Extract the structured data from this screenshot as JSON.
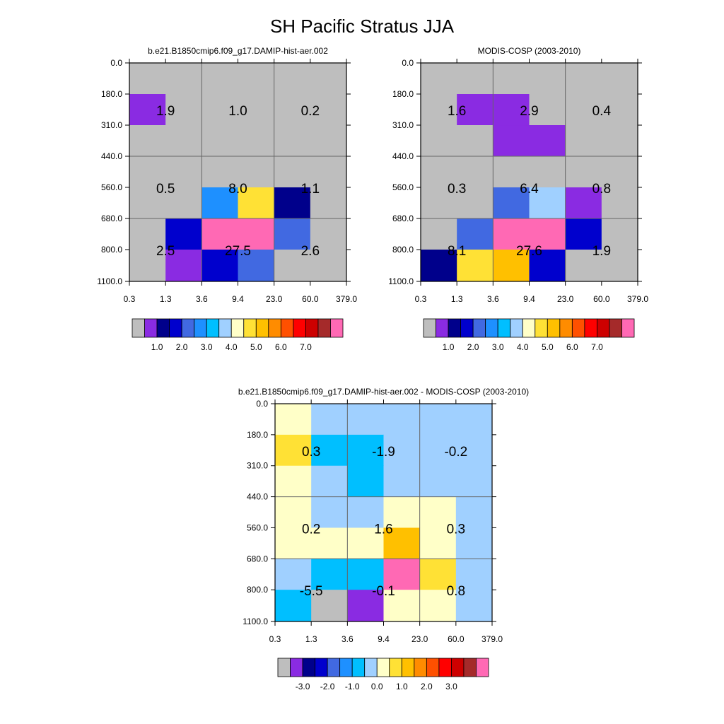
{
  "title": "SH Pacific Stratus JJA",
  "colors": {
    "gray": "#bebebe",
    "palette": [
      "#bebebe",
      "#8a2be2",
      "#00008b",
      "#0000cd",
      "#4169e1",
      "#1e90ff",
      "#00bfff",
      "#a0d0ff",
      "#ffffc8",
      "#ffe135",
      "#ffc000",
      "#ff8c00",
      "#ff5000",
      "#ff0000",
      "#cd0000",
      "#a52a2a",
      "#ff69b4"
    ],
    "grid_line": "#666666",
    "axis": "#000000"
  },
  "chart_data": [
    {
      "type": "heatmap",
      "title": "b.e21.B1850cmip6.f09_g17.DAMIP-hist-aer.002",
      "x_tick_labels": [
        "0.3",
        "1.3",
        "3.6",
        "9.4",
        "23.0",
        "60.0",
        "379.0"
      ],
      "y_tick_labels": [
        "0.0",
        "180.0",
        "310.0",
        "440.0",
        "560.0",
        "680.0",
        "800.0",
        "1100.0"
      ],
      "cell_colors": [
        [
          0,
          0,
          0,
          0,
          0,
          0
        ],
        [
          1,
          0,
          0,
          0,
          0,
          0
        ],
        [
          0,
          0,
          0,
          0,
          0,
          0
        ],
        [
          0,
          0,
          0,
          0,
          0,
          0
        ],
        [
          0,
          0,
          5,
          9,
          2,
          0
        ],
        [
          0,
          3,
          16,
          16,
          4,
          0
        ],
        [
          0,
          1,
          3,
          4,
          0,
          0
        ]
      ],
      "group_values": [
        [
          "1.9",
          "1.0",
          "0.2"
        ],
        [
          "0.5",
          "8.0",
          "1.1"
        ],
        [
          "2.5",
          "27.5",
          "2.6"
        ]
      ],
      "colorbar": {
        "n_boxes": 16,
        "labels": [
          "1.0",
          "2.0",
          "3.0",
          "4.0",
          "5.0",
          "6.0",
          "7.0"
        ]
      }
    },
    {
      "type": "heatmap",
      "title": "MODIS-COSP (2003-2010)",
      "x_tick_labels": [
        "0.3",
        "1.3",
        "3.6",
        "9.4",
        "23.0",
        "60.0",
        "379.0"
      ],
      "y_tick_labels": [
        "0.0",
        "180.0",
        "310.0",
        "440.0",
        "560.0",
        "680.0",
        "800.0",
        "1100.0"
      ],
      "cell_colors": [
        [
          0,
          0,
          0,
          0,
          0,
          0
        ],
        [
          0,
          1,
          1,
          0,
          0,
          0
        ],
        [
          0,
          0,
          1,
          1,
          0,
          0
        ],
        [
          0,
          0,
          0,
          0,
          0,
          0
        ],
        [
          0,
          0,
          4,
          7,
          1,
          0
        ],
        [
          0,
          4,
          16,
          16,
          3,
          0
        ],
        [
          2,
          9,
          10,
          3,
          0,
          0
        ]
      ],
      "group_values": [
        [
          "1.6",
          "2.9",
          "0.4"
        ],
        [
          "0.3",
          "6.4",
          "0.8"
        ],
        [
          "8.1",
          "27.6",
          "1.9"
        ]
      ],
      "colorbar": {
        "n_boxes": 16,
        "labels": [
          "1.0",
          "2.0",
          "3.0",
          "4.0",
          "5.0",
          "6.0",
          "7.0"
        ]
      }
    },
    {
      "type": "heatmap",
      "title": "b.e21.B1850cmip6.f09_g17.DAMIP-hist-aer.002 - MODIS-COSP (2003-2010)",
      "x_tick_labels": [
        "0.3",
        "1.3",
        "3.6",
        "9.4",
        "23.0",
        "60.0",
        "379.0"
      ],
      "y_tick_labels": [
        "0.0",
        "180.0",
        "310.0",
        "440.0",
        "560.0",
        "680.0",
        "800.0",
        "1100.0"
      ],
      "cell_colors": [
        [
          8,
          7,
          7,
          7,
          7,
          7
        ],
        [
          9,
          6,
          6,
          7,
          7,
          7
        ],
        [
          8,
          7,
          6,
          7,
          7,
          7
        ],
        [
          8,
          7,
          7,
          8,
          8,
          7
        ],
        [
          8,
          8,
          8,
          10,
          8,
          7
        ],
        [
          7,
          6,
          6,
          16,
          9,
          7
        ],
        [
          6,
          0,
          1,
          8,
          8,
          7
        ]
      ],
      "group_values": [
        [
          "0.3",
          "-1.9",
          "-0.2"
        ],
        [
          "0.2",
          "1.6",
          "0.3"
        ],
        [
          "-5.5",
          "-0.1",
          "0.8"
        ]
      ],
      "colorbar": {
        "n_boxes": 16,
        "labels": [
          "-3.0",
          "-2.0",
          "-1.0",
          "0.0",
          "1.0",
          "2.0",
          "3.0"
        ]
      }
    }
  ]
}
